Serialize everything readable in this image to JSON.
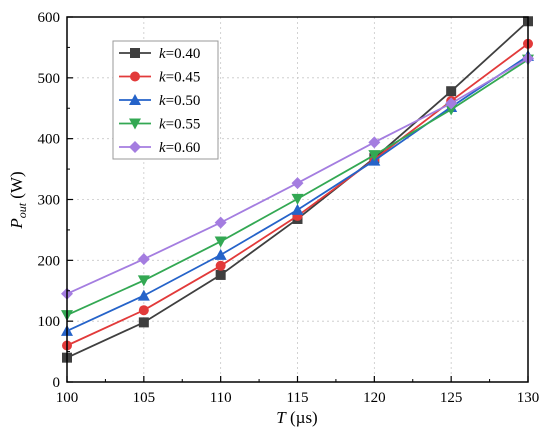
{
  "chart_data": {
    "type": "line",
    "xlabel": {
      "var": "T",
      "unit": " (µs)"
    },
    "ylabel": {
      "var": "P",
      "sub": "out",
      "unit": " (W)"
    },
    "x": [
      100,
      105,
      110,
      115,
      120,
      125,
      130
    ],
    "xlim": [
      100,
      130
    ],
    "ylim": [
      0,
      600
    ],
    "xticks": [
      "100",
      "105",
      "110",
      "115",
      "120",
      "125",
      "130"
    ],
    "yticks": [
      "0",
      "100",
      "200",
      "300",
      "400",
      "500",
      "600"
    ],
    "grid": true,
    "legend_position": "top-left",
    "series": [
      {
        "name": "=0.40",
        "color": "#3f3f3f",
        "marker": "square",
        "values": [
          40,
          98,
          176,
          268,
          368,
          478,
          593
        ]
      },
      {
        "name": "=0.45",
        "color": "#e23a3a",
        "marker": "circle",
        "values": [
          60,
          118,
          191,
          273,
          366,
          462,
          556
        ]
      },
      {
        "name": "=0.50",
        "color": "#2563c9",
        "marker": "triangle-up",
        "values": [
          84,
          142,
          209,
          283,
          364,
          452,
          536
        ]
      },
      {
        "name": "=0.55",
        "color": "#33a853",
        "marker": "triangle-down",
        "values": [
          110,
          167,
          231,
          301,
          373,
          448,
          530
        ]
      },
      {
        "name": "=0.60",
        "color": "#a47de0",
        "marker": "diamond",
        "values": [
          145,
          202,
          262,
          327,
          394,
          458,
          532
        ]
      }
    ],
    "legend_var": "k"
  }
}
